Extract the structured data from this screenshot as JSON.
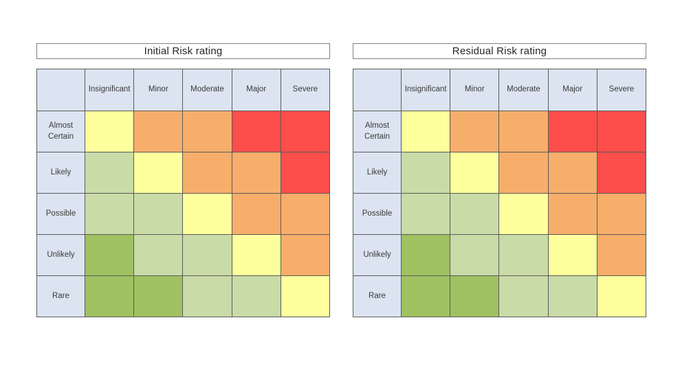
{
  "page": {
    "background": "#ffffff"
  },
  "palette": {
    "header_fill": "#DCE4F1",
    "grid_border": "#595959",
    "title_border": "#7F7F7F",
    "title_text": "#262626",
    "cell_text": "#3A3A3A",
    "levels": {
      "green": "#A0C161",
      "lightgreen": "#C9DBA7",
      "yellow": "#FEFF9D",
      "orange": "#F8AE6B",
      "red": "#FD4E4B"
    }
  },
  "matrices": [
    {
      "title": "Initial Risk rating",
      "columns": [
        "Insignificant",
        "Minor",
        "Moderate",
        "Major",
        "Severe"
      ],
      "rows": [
        "Almost Certain",
        "Likely",
        "Possible",
        "Unlikely",
        "Rare"
      ],
      "cells": [
        [
          "yellow",
          "orange",
          "orange",
          "red",
          "red"
        ],
        [
          "lightgreen",
          "yellow",
          "orange",
          "orange",
          "red"
        ],
        [
          "lightgreen",
          "lightgreen",
          "yellow",
          "orange",
          "orange"
        ],
        [
          "green",
          "lightgreen",
          "lightgreen",
          "yellow",
          "orange"
        ],
        [
          "green",
          "green",
          "lightgreen",
          "lightgreen",
          "yellow"
        ]
      ]
    },
    {
      "title": "Residual Risk rating",
      "columns": [
        "Insignificant",
        "Minor",
        "Moderate",
        "Major",
        "Severe"
      ],
      "rows": [
        "Almost Certain",
        "Likely",
        "Possible",
        "Unlikely",
        "Rare"
      ],
      "cells": [
        [
          "yellow",
          "orange",
          "orange",
          "red",
          "red"
        ],
        [
          "lightgreen",
          "yellow",
          "orange",
          "orange",
          "red"
        ],
        [
          "lightgreen",
          "lightgreen",
          "yellow",
          "orange",
          "orange"
        ],
        [
          "green",
          "lightgreen",
          "lightgreen",
          "yellow",
          "orange"
        ],
        [
          "green",
          "green",
          "lightgreen",
          "lightgreen",
          "yellow"
        ]
      ]
    }
  ],
  "chart_data": [
    {
      "type": "heatmap",
      "title": "Initial Risk rating",
      "xlabel": "",
      "ylabel": "",
      "x_categories": [
        "Insignificant",
        "Minor",
        "Moderate",
        "Major",
        "Severe"
      ],
      "y_categories": [
        "Almost Certain",
        "Likely",
        "Possible",
        "Unlikely",
        "Rare"
      ],
      "values": [
        [
          "yellow",
          "orange",
          "orange",
          "red",
          "red"
        ],
        [
          "lightgreen",
          "yellow",
          "orange",
          "orange",
          "red"
        ],
        [
          "lightgreen",
          "lightgreen",
          "yellow",
          "orange",
          "orange"
        ],
        [
          "green",
          "lightgreen",
          "lightgreen",
          "yellow",
          "orange"
        ],
        [
          "green",
          "green",
          "lightgreen",
          "lightgreen",
          "yellow"
        ]
      ],
      "color_map": {
        "green": "#A0C161",
        "lightgreen": "#C9DBA7",
        "yellow": "#FEFF9D",
        "orange": "#F8AE6B",
        "red": "#FD4E4B"
      },
      "grid": true,
      "legend_position": "none"
    },
    {
      "type": "heatmap",
      "title": "Residual Risk rating",
      "xlabel": "",
      "ylabel": "",
      "x_categories": [
        "Insignificant",
        "Minor",
        "Moderate",
        "Major",
        "Severe"
      ],
      "y_categories": [
        "Almost Certain",
        "Likely",
        "Possible",
        "Unlikely",
        "Rare"
      ],
      "values": [
        [
          "yellow",
          "orange",
          "orange",
          "red",
          "red"
        ],
        [
          "lightgreen",
          "yellow",
          "orange",
          "orange",
          "red"
        ],
        [
          "lightgreen",
          "lightgreen",
          "yellow",
          "orange",
          "orange"
        ],
        [
          "green",
          "lightgreen",
          "lightgreen",
          "yellow",
          "orange"
        ],
        [
          "green",
          "green",
          "lightgreen",
          "lightgreen",
          "yellow"
        ]
      ],
      "color_map": {
        "green": "#A0C161",
        "lightgreen": "#C9DBA7",
        "yellow": "#FEFF9D",
        "orange": "#F8AE6B",
        "red": "#FD4E4B"
      },
      "grid": true,
      "legend_position": "none"
    }
  ]
}
